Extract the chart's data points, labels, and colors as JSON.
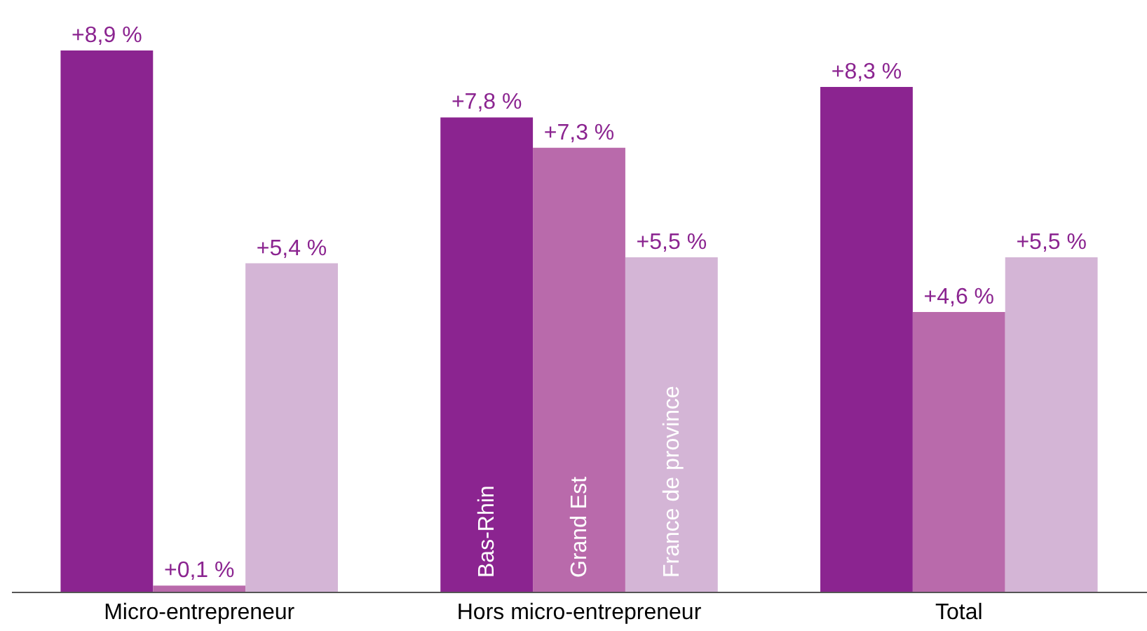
{
  "chart_data": {
    "type": "bar",
    "categories": [
      "Micro-entrepreneur",
      "Hors micro-entrepreneur",
      "Total"
    ],
    "series": [
      {
        "name": "Bas-Rhin",
        "color": "#8b2490",
        "values": [
          8.9,
          7.8,
          8.3
        ],
        "value_labels": [
          "+8,9 %",
          "+7,8 %",
          "+8,3 %"
        ]
      },
      {
        "name": "Grand Est",
        "color": "#b96aab",
        "values": [
          0.1,
          7.3,
          4.6
        ],
        "value_labels": [
          "+0,1 %",
          "+7,3 %",
          "+4,6 %"
        ]
      },
      {
        "name": "France de province",
        "color": "#d4b5d6",
        "values": [
          5.4,
          5.5,
          5.5
        ],
        "value_labels": [
          "+5,4 %",
          "+5,5 %",
          "+5,5 %"
        ]
      }
    ],
    "legend": false
  }
}
